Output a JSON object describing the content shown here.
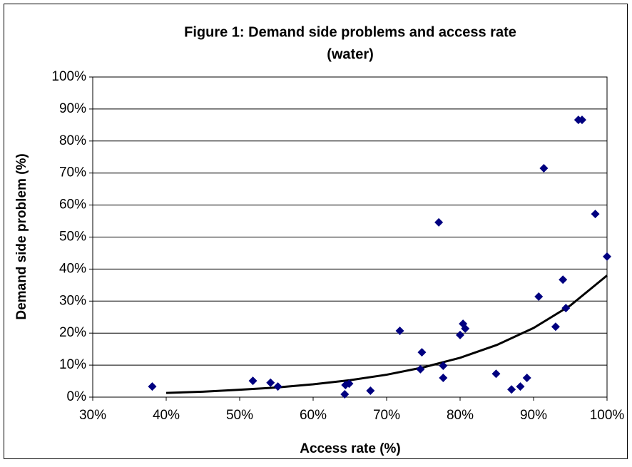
{
  "chart_data": {
    "type": "scatter",
    "title": [
      "Figure 1: Demand side problems and access rate",
      "(water)"
    ],
    "x_label": "Access rate (%)",
    "y_label": "Demand side problem (%)",
    "xlim": [
      30,
      100
    ],
    "ylim": [
      0,
      100
    ],
    "xticks": [
      {
        "value": 30,
        "label": "30%"
      },
      {
        "value": 40,
        "label": "40%"
      },
      {
        "value": 50,
        "label": "50%"
      },
      {
        "value": 60,
        "label": "60%"
      },
      {
        "value": 70,
        "label": "70%"
      },
      {
        "value": 80,
        "label": "80%"
      },
      {
        "value": 90,
        "label": "90%"
      },
      {
        "value": 100,
        "label": "100%"
      }
    ],
    "yticks": [
      {
        "value": 0,
        "label": "0%"
      },
      {
        "value": 10,
        "label": "10%"
      },
      {
        "value": 20,
        "label": "20%"
      },
      {
        "value": 30,
        "label": "30%"
      },
      {
        "value": 40,
        "label": "40%"
      },
      {
        "value": 50,
        "label": "50%"
      },
      {
        "value": 60,
        "label": "60%"
      },
      {
        "value": 70,
        "label": "70%"
      },
      {
        "value": 80,
        "label": "80%"
      },
      {
        "value": 90,
        "label": "90%"
      },
      {
        "value": 100,
        "label": "100%"
      }
    ],
    "grid": true,
    "color": "#000080",
    "x": [
      38.1,
      51.8,
      54.2,
      55.2,
      64.3,
      64.4,
      64.9,
      67.8,
      71.8,
      74.6,
      74.8,
      77.1,
      77.7,
      77.7,
      80.0,
      80.4,
      80.7,
      84.9,
      87.0,
      88.2,
      89.1,
      90.7,
      91.4,
      93.0,
      94.0,
      94.4,
      96.1,
      96.6,
      98.4,
      100.0
    ],
    "values": [
      3.3,
      5.1,
      4.5,
      3.3,
      0.9,
      3.8,
      4.2,
      2.0,
      20.7,
      8.7,
      14.0,
      54.6,
      9.8,
      6.0,
      19.4,
      22.9,
      21.4,
      7.3,
      2.4,
      3.3,
      6.0,
      31.4,
      71.5,
      22.0,
      36.7,
      27.8,
      86.6,
      86.6,
      57.2,
      43.9
    ],
    "trendline": {
      "color": "#000000",
      "x": [
        40,
        45,
        50,
        55,
        60,
        65,
        70,
        75,
        80,
        85,
        90,
        95,
        100
      ],
      "values": [
        1.3,
        1.7,
        2.3,
        3.0,
        4.0,
        5.3,
        7.0,
        9.3,
        12.3,
        16.3,
        21.6,
        28.6,
        38.0
      ]
    }
  }
}
